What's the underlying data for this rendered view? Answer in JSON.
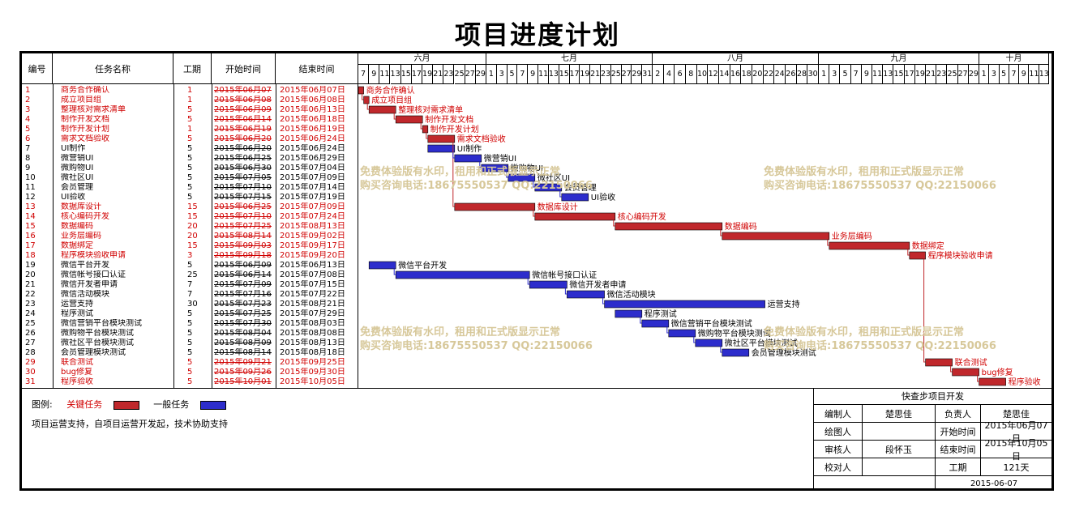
{
  "title": "项目进度计划",
  "headers": {
    "id": "编号",
    "name": "任务名称",
    "duration": "工期",
    "start": "开始时间",
    "end": "结束时间"
  },
  "months": [
    "六月",
    "七月",
    "八月",
    "九月",
    "十月"
  ],
  "month_days": {
    "jun": [
      "7",
      "9",
      "11",
      "13",
      "15",
      "17",
      "19",
      "21",
      "23",
      "25",
      "27",
      "29"
    ],
    "jul": [
      "1",
      "3",
      "5",
      "7",
      "9",
      "11",
      "13",
      "15",
      "17",
      "19",
      "21",
      "23",
      "25",
      "27",
      "29",
      "31"
    ],
    "aug": [
      "2",
      "4",
      "6",
      "8",
      "10",
      "12",
      "14",
      "16",
      "18",
      "20",
      "22",
      "24",
      "26",
      "28",
      "30"
    ],
    "sep": [
      "1",
      "3",
      "5",
      "7",
      "9",
      "11",
      "13",
      "15",
      "17",
      "19",
      "21",
      "23",
      "25",
      "27",
      "29"
    ],
    "oct": [
      "1",
      "3",
      "5",
      "7",
      "9",
      "11",
      "13"
    ]
  },
  "colors": {
    "critical": "#d00000",
    "normal": "#1c1ccc",
    "critical_bar": "#c0282c",
    "normal_bar": "#2d2dcc",
    "watermark": "#d7c89a"
  },
  "tasks": [
    {
      "id": "1",
      "name": "商务合作确认",
      "duration": "1",
      "start": "2015年06月07",
      "end": "2015年06月07日",
      "critical": true,
      "s": "2015-06-07",
      "e": "2015-06-07"
    },
    {
      "id": "2",
      "name": "成立项目组",
      "duration": "1",
      "start": "2015年06月08",
      "end": "2015年06月08日",
      "critical": true,
      "s": "2015-06-08",
      "e": "2015-06-08"
    },
    {
      "id": "3",
      "name": "整理核对需求清单",
      "duration": "5",
      "start": "2015年06月09",
      "end": "2015年06月13日",
      "critical": true,
      "s": "2015-06-09",
      "e": "2015-06-13"
    },
    {
      "id": "4",
      "name": "制作开发文档",
      "duration": "5",
      "start": "2015年06月14",
      "end": "2015年06月18日",
      "critical": true,
      "s": "2015-06-14",
      "e": "2015-06-18"
    },
    {
      "id": "5",
      "name": "制作开发计划",
      "duration": "1",
      "start": "2015年06月19",
      "end": "2015年06月19日",
      "critical": true,
      "s": "2015-06-19",
      "e": "2015-06-19"
    },
    {
      "id": "6",
      "name": "需求文档验收",
      "duration": "5",
      "start": "2015年06月20",
      "end": "2015年06月24日",
      "critical": true,
      "s": "2015-06-20",
      "e": "2015-06-24"
    },
    {
      "id": "7",
      "name": "UI制作",
      "duration": "5",
      "start": "2015年06月20",
      "end": "2015年06月24日",
      "critical": false,
      "s": "2015-06-20",
      "e": "2015-06-24"
    },
    {
      "id": "8",
      "name": "微营销UI",
      "duration": "5",
      "start": "2015年06月25",
      "end": "2015年06月29日",
      "critical": false,
      "s": "2015-06-25",
      "e": "2015-06-29"
    },
    {
      "id": "9",
      "name": "微购物UI",
      "duration": "5",
      "start": "2015年06月30",
      "end": "2015年07月04日",
      "critical": false,
      "s": "2015-06-30",
      "e": "2015-07-04"
    },
    {
      "id": "10",
      "name": "微社区UI",
      "duration": "5",
      "start": "2015年07月05",
      "end": "2015年07月09日",
      "critical": false,
      "s": "2015-07-05",
      "e": "2015-07-09"
    },
    {
      "id": "11",
      "name": "会员管理",
      "duration": "5",
      "start": "2015年07月10",
      "end": "2015年07月14日",
      "critical": false,
      "s": "2015-07-10",
      "e": "2015-07-14"
    },
    {
      "id": "12",
      "name": "UI验收",
      "duration": "5",
      "start": "2015年07月15",
      "end": "2015年07月19日",
      "critical": false,
      "s": "2015-07-15",
      "e": "2015-07-19"
    },
    {
      "id": "13",
      "name": "数据库设计",
      "duration": "15",
      "start": "2015年06月25",
      "end": "2015年07月09日",
      "critical": true,
      "s": "2015-06-25",
      "e": "2015-07-09"
    },
    {
      "id": "14",
      "name": "核心编码开发",
      "duration": "15",
      "start": "2015年07月10",
      "end": "2015年07月24日",
      "critical": true,
      "s": "2015-07-10",
      "e": "2015-07-24"
    },
    {
      "id": "15",
      "name": "数据编码",
      "duration": "20",
      "start": "2015年07月25",
      "end": "2015年08月13日",
      "critical": true,
      "s": "2015-07-25",
      "e": "2015-08-13"
    },
    {
      "id": "16",
      "name": "业务层编码",
      "duration": "20",
      "start": "2015年08月14",
      "end": "2015年09月02日",
      "critical": true,
      "s": "2015-08-14",
      "e": "2015-09-02"
    },
    {
      "id": "17",
      "name": "数据绑定",
      "duration": "15",
      "start": "2015年09月03",
      "end": "2015年09月17日",
      "critical": true,
      "s": "2015-09-03",
      "e": "2015-09-17"
    },
    {
      "id": "18",
      "name": "程序模块验收申请",
      "duration": "3",
      "start": "2015年09月18",
      "end": "2015年09月20日",
      "critical": true,
      "s": "2015-09-18",
      "e": "2015-09-20"
    },
    {
      "id": "19",
      "name": "微信平台开发",
      "duration": "5",
      "start": "2015年06月09",
      "end": "2015年06月13日",
      "critical": false,
      "s": "2015-06-09",
      "e": "2015-06-13"
    },
    {
      "id": "20",
      "name": "微信帐号接口认证",
      "duration": "25",
      "start": "2015年06月14",
      "end": "2015年07月08日",
      "critical": false,
      "s": "2015-06-14",
      "e": "2015-07-08"
    },
    {
      "id": "21",
      "name": "微信开发者申请",
      "duration": "7",
      "start": "2015年07月09",
      "end": "2015年07月15日",
      "critical": false,
      "s": "2015-07-09",
      "e": "2015-07-15"
    },
    {
      "id": "22",
      "name": "微信活动模块",
      "duration": "7",
      "start": "2015年07月16",
      "end": "2015年07月22日",
      "critical": false,
      "s": "2015-07-16",
      "e": "2015-07-22"
    },
    {
      "id": "23",
      "name": "运营支持",
      "duration": "30",
      "start": "2015年07月23",
      "end": "2015年08月21日",
      "critical": false,
      "s": "2015-07-23",
      "e": "2015-08-21"
    },
    {
      "id": "24",
      "name": "程序测试",
      "duration": "5",
      "start": "2015年07月25",
      "end": "2015年07月29日",
      "critical": false,
      "s": "2015-07-25",
      "e": "2015-07-29"
    },
    {
      "id": "25",
      "name": "微信营销平台模块测试",
      "duration": "5",
      "start": "2015年07月30",
      "end": "2015年08月03日",
      "critical": false,
      "s": "2015-07-30",
      "e": "2015-08-03"
    },
    {
      "id": "26",
      "name": "微购物平台模块测试",
      "duration": "5",
      "start": "2015年08月04",
      "end": "2015年08月08日",
      "critical": false,
      "s": "2015-08-04",
      "e": "2015-08-08"
    },
    {
      "id": "27",
      "name": "微社区平台模块测试",
      "duration": "5",
      "start": "2015年08月09",
      "end": "2015年08月13日",
      "critical": false,
      "s": "2015-08-09",
      "e": "2015-08-13"
    },
    {
      "id": "28",
      "name": "会员管理模块测试",
      "duration": "5",
      "start": "2015年08月14",
      "end": "2015年08月18日",
      "critical": false,
      "s": "2015-08-14",
      "e": "2015-08-18"
    },
    {
      "id": "29",
      "name": "联合测试",
      "duration": "5",
      "start": "2015年09月21",
      "end": "2015年09月25日",
      "critical": true,
      "s": "2015-09-21",
      "e": "2015-09-25"
    },
    {
      "id": "30",
      "name": "bug修复",
      "duration": "5",
      "start": "2015年09月26",
      "end": "2015年09月30日",
      "critical": true,
      "s": "2015-09-26",
      "e": "2015-09-30"
    },
    {
      "id": "31",
      "name": "程序验收",
      "duration": "5",
      "start": "2015年10月01",
      "end": "2015年10月05日",
      "critical": true,
      "s": "2015-10-01",
      "e": "2015-10-05"
    }
  ],
  "watermark": {
    "line1": "免费体验版有水印，租用和正式版显示正常",
    "line2": "购买咨询电话:18675550537 QQ:22150066"
  },
  "legend": {
    "label": "图例:",
    "critical": "关键任务",
    "normal": "一般任务",
    "note": "项目运营支持，自项目运营开发起，技术协助支持"
  },
  "info": {
    "company": "快查步项目开发",
    "author_label": "编制人",
    "author": "楚思佳",
    "owner_label": "负责人",
    "owner": "楚思佳",
    "drawer_label": "绘图人",
    "start_label": "开始时间",
    "start": "2015年06月07日",
    "reviewer_label": "审核人",
    "reviewer": "段怀玉",
    "end_label": "结束时间",
    "end": "2015年10月05日",
    "checker_label": "校对人",
    "duration_label": "工期",
    "duration": "121天",
    "date": "2015-06-07"
  }
}
